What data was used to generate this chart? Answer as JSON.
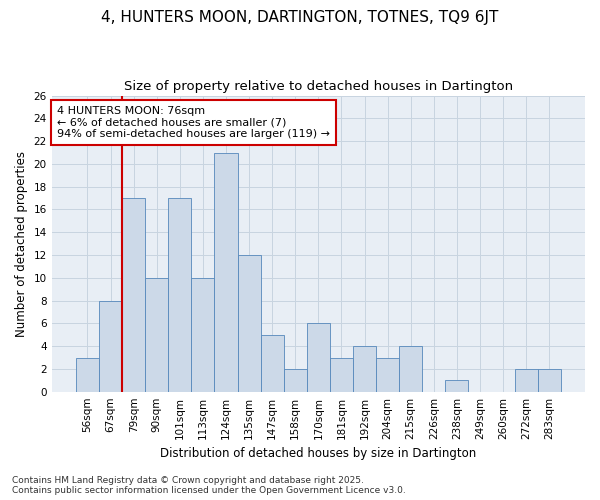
{
  "title": "4, HUNTERS MOON, DARTINGTON, TOTNES, TQ9 6JT",
  "subtitle": "Size of property relative to detached houses in Dartington",
  "xlabel": "Distribution of detached houses by size in Dartington",
  "ylabel": "Number of detached properties",
  "categories": [
    "56sqm",
    "67sqm",
    "79sqm",
    "90sqm",
    "101sqm",
    "113sqm",
    "124sqm",
    "135sqm",
    "147sqm",
    "158sqm",
    "170sqm",
    "181sqm",
    "192sqm",
    "204sqm",
    "215sqm",
    "226sqm",
    "238sqm",
    "249sqm",
    "260sqm",
    "272sqm",
    "283sqm"
  ],
  "values": [
    3,
    8,
    17,
    10,
    17,
    10,
    21,
    12,
    5,
    2,
    6,
    3,
    4,
    3,
    4,
    0,
    1,
    0,
    0,
    2,
    2
  ],
  "bar_color": "#ccd9e8",
  "bar_edge_color": "#5588bb",
  "highlight_color": "#cc0000",
  "vline_x": 1.5,
  "annotation_text": "4 HUNTERS MOON: 76sqm\n← 6% of detached houses are smaller (7)\n94% of semi-detached houses are larger (119) →",
  "annotation_box_color": "#ffffff",
  "annotation_box_edge": "#cc0000",
  "ylim": [
    0,
    26
  ],
  "yticks": [
    0,
    2,
    4,
    6,
    8,
    10,
    12,
    14,
    16,
    18,
    20,
    22,
    24,
    26
  ],
  "background_color": "#ffffff",
  "plot_bg_color": "#e8eef5",
  "grid_color": "#c8d4e0",
  "footer_line1": "Contains HM Land Registry data © Crown copyright and database right 2025.",
  "footer_line2": "Contains public sector information licensed under the Open Government Licence v3.0.",
  "title_fontsize": 11,
  "subtitle_fontsize": 9.5,
  "axis_label_fontsize": 8.5,
  "tick_fontsize": 7.5,
  "annotation_fontsize": 8,
  "footer_fontsize": 6.5
}
